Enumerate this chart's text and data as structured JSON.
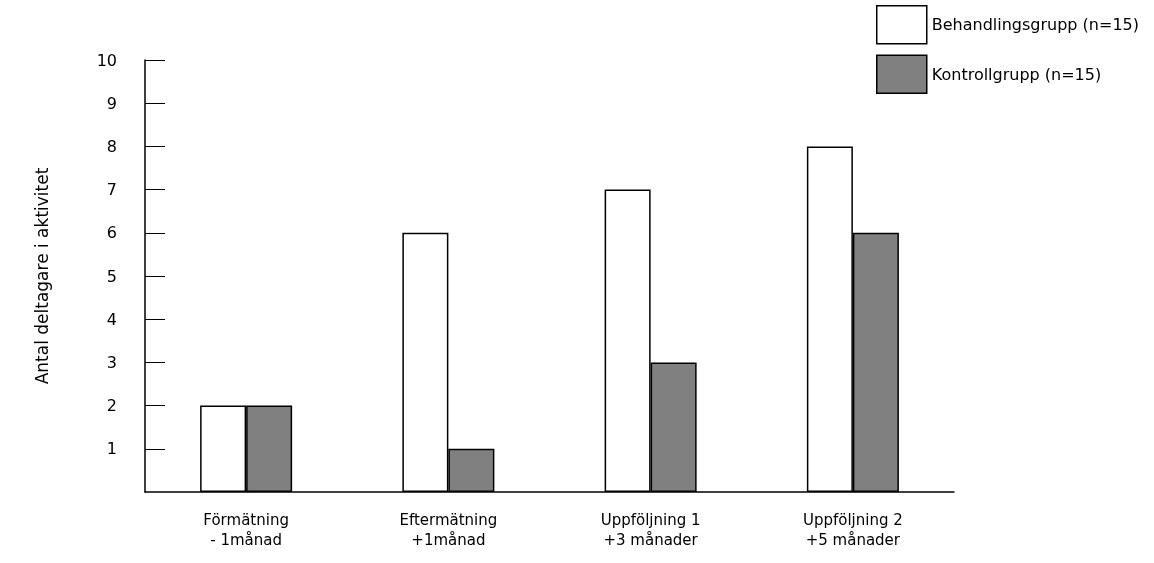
{
  "chart_data": {
    "type": "bar",
    "ylabel": "Antal deltagare i aktivitet",
    "categories": [
      "Förmätning\n- 1månad",
      "Eftermätning\n+1månad",
      "Uppföljning 1\n+3 månader",
      "Uppföljning 2\n+5 månader"
    ],
    "series": [
      {
        "name": "Behandlingsgrupp (n=15)",
        "color": "#ffffff",
        "values": [
          2,
          6,
          7,
          8
        ]
      },
      {
        "name": "Kontrollgrupp (n=15)",
        "color": "#808080",
        "values": [
          2,
          1,
          3,
          6
        ]
      }
    ],
    "ylim": [
      0,
      10
    ],
    "yticks": [
      1,
      2,
      3,
      4,
      5,
      6,
      7,
      8,
      9,
      10
    ],
    "grid": false,
    "legend": "top right"
  }
}
